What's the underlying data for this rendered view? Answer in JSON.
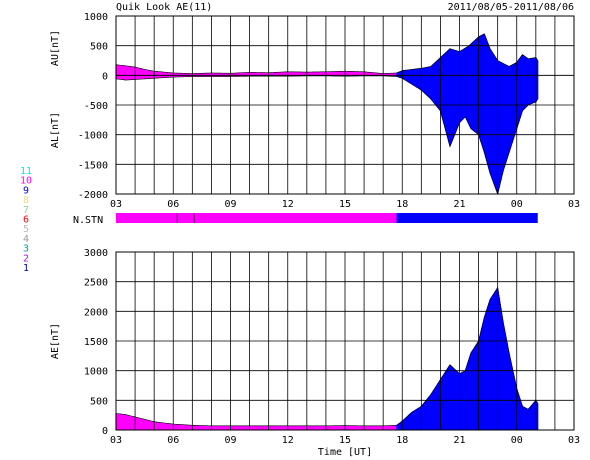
{
  "header": {
    "title": "Quik Look AE(11)",
    "date_range": "2011/08/05-2011/08/06"
  },
  "station_legend": {
    "entries": [
      {
        "label": "11",
        "color": "#00e5ee"
      },
      {
        "label": "10",
        "color": "#ff00ff"
      },
      {
        "label": "9",
        "color": "#0000ee"
      },
      {
        "label": "8",
        "color": "#eedd88"
      },
      {
        "label": "7",
        "color": "#88dd88"
      },
      {
        "label": "6",
        "color": "#ff0000"
      },
      {
        "label": "5",
        "color": "#bbbbbb"
      },
      {
        "label": "4",
        "color": "#999999"
      },
      {
        "label": "3",
        "color": "#00a0a0"
      },
      {
        "label": "2",
        "color": "#a020f0"
      },
      {
        "label": "1",
        "color": "#0000aa"
      }
    ]
  },
  "nstn_label": "N.STN",
  "chart_data": [
    {
      "type": "area",
      "name": "AU/AL",
      "ylabel_upper": "AU[nT]",
      "ylabel_lower": "AL[nT]",
      "ylim": [
        -2000,
        1000
      ],
      "yticks": [
        1000,
        500,
        0,
        -500,
        -1000,
        -1500,
        -2000
      ],
      "xlim": [
        3,
        27
      ],
      "xticks": [
        "03",
        "06",
        "09",
        "12",
        "15",
        "18",
        "21",
        "00",
        "03"
      ],
      "grid": true,
      "colors": {
        "early": "#ff00ff",
        "late": "#0000ff"
      },
      "color_switch_hour": 17.7,
      "data_end_hour": 25.1,
      "au": {
        "x": [
          3.0,
          3.5,
          4.0,
          4.5,
          5.0,
          6.0,
          7.0,
          8.0,
          9.0,
          10.0,
          11.0,
          12.0,
          13.0,
          14.0,
          15.0,
          16.0,
          17.0,
          17.7,
          18.0,
          18.5,
          19.0,
          19.5,
          20.0,
          20.5,
          21.0,
          21.5,
          22.0,
          22.3,
          22.6,
          23.0,
          23.3,
          23.6,
          24.0,
          24.3,
          24.6,
          25.0,
          25.1
        ],
        "y": [
          180,
          160,
          140,
          100,
          70,
          40,
          30,
          40,
          35,
          50,
          45,
          60,
          55,
          60,
          70,
          60,
          30,
          40,
          80,
          100,
          120,
          150,
          300,
          450,
          400,
          500,
          650,
          700,
          450,
          250,
          200,
          150,
          220,
          350,
          280,
          300,
          250
        ]
      },
      "al": {
        "x": [
          3.0,
          3.5,
          4.0,
          4.5,
          5.0,
          6.0,
          7.0,
          8.0,
          9.0,
          10.0,
          11.0,
          12.0,
          13.0,
          14.0,
          15.0,
          16.0,
          17.0,
          17.7,
          18.0,
          18.5,
          19.0,
          19.5,
          20.0,
          20.5,
          21.0,
          21.3,
          21.6,
          22.0,
          22.3,
          22.6,
          23.0,
          23.3,
          23.6,
          24.0,
          24.3,
          24.6,
          25.0,
          25.1
        ],
        "y": [
          -60,
          -80,
          -70,
          -60,
          -50,
          -30,
          -20,
          -20,
          -20,
          -15,
          -15,
          -15,
          -10,
          -10,
          -15,
          -10,
          -10,
          -20,
          -50,
          -150,
          -250,
          -400,
          -600,
          -1200,
          -800,
          -700,
          -900,
          -1000,
          -1300,
          -1650,
          -2000,
          -1600,
          -1300,
          -900,
          -600,
          -500,
          -450,
          -400
        ]
      }
    },
    {
      "type": "area",
      "name": "AE",
      "ylabel": "AE[nT]",
      "xlabel": "Time [UT]",
      "ylim": [
        0,
        3000
      ],
      "yticks": [
        3000,
        2500,
        2000,
        1500,
        1000,
        500,
        0
      ],
      "xlim": [
        3,
        27
      ],
      "xticks": [
        "03",
        "06",
        "09",
        "12",
        "15",
        "18",
        "21",
        "00",
        "03"
      ],
      "grid": true,
      "colors": {
        "early": "#ff00ff",
        "late": "#0000ff"
      },
      "color_switch_hour": 17.7,
      "data_end_hour": 25.1,
      "x": [
        3.0,
        3.5,
        4.0,
        4.5,
        5.0,
        6.0,
        7.0,
        8.0,
        9.0,
        10.0,
        11.0,
        12.0,
        13.0,
        14.0,
        15.0,
        16.0,
        17.0,
        17.7,
        18.0,
        18.5,
        19.0,
        19.5,
        20.0,
        20.5,
        21.0,
        21.3,
        21.6,
        22.0,
        22.3,
        22.6,
        23.0,
        23.3,
        23.6,
        24.0,
        24.3,
        24.6,
        25.0,
        25.1
      ],
      "y": [
        280,
        260,
        220,
        180,
        140,
        100,
        80,
        70,
        70,
        70,
        70,
        70,
        70,
        70,
        75,
        70,
        70,
        80,
        150,
        300,
        400,
        600,
        850,
        1100,
        950,
        1000,
        1300,
        1500,
        1900,
        2200,
        2400,
        1800,
        1300,
        700,
        400,
        350,
        500,
        450
      ]
    }
  ],
  "nstn_bar": {
    "segments": [
      {
        "start": 3.0,
        "end": 17.7,
        "color": "#ff00ff"
      },
      {
        "start": 17.7,
        "end": 25.1,
        "color": "#0000ff"
      }
    ],
    "markers": [
      6.2,
      7.1
    ]
  }
}
